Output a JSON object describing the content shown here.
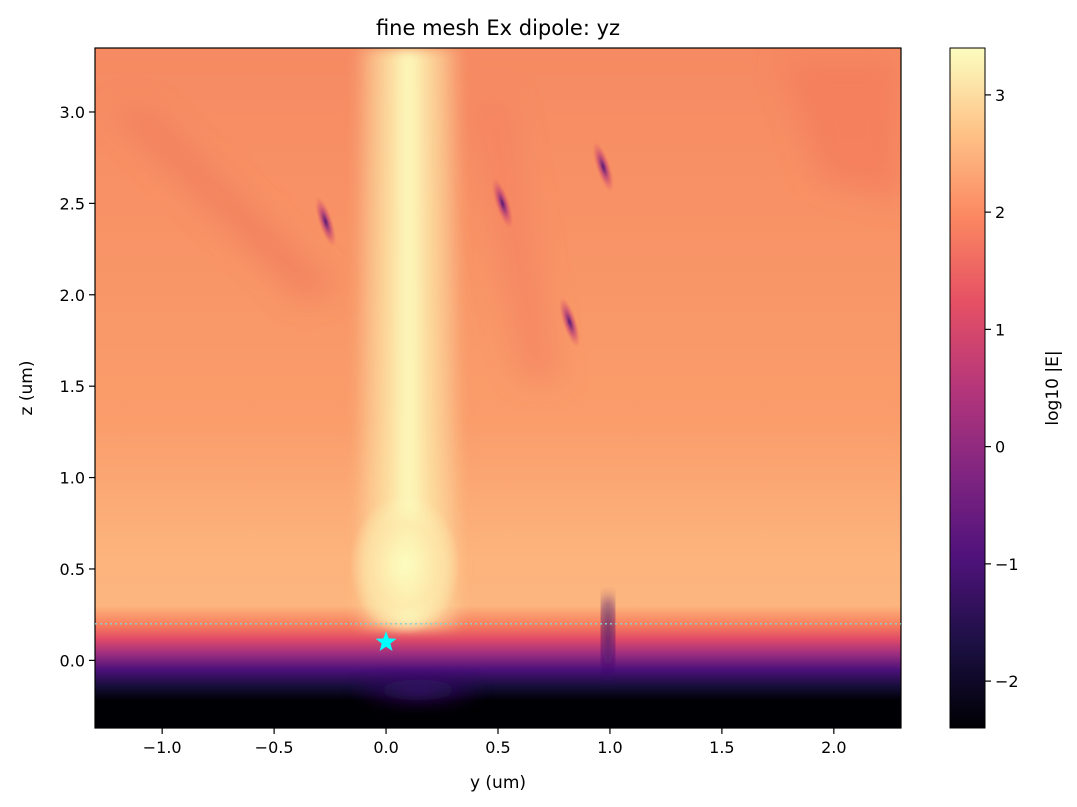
{
  "chart_data": {
    "type": "heatmap",
    "title": "fine mesh Ex dipole: yz",
    "xlabel": "y (um)",
    "ylabel": "z (um)",
    "xlim": [
      -1.3,
      2.3
    ],
    "ylim": [
      -0.37,
      3.35
    ],
    "x_ticks": [
      -1.0,
      -0.5,
      0.0,
      0.5,
      1.0,
      1.5,
      2.0
    ],
    "x_tick_labels": [
      "−1.0",
      "−0.5",
      "0.0",
      "0.5",
      "1.0",
      "1.5",
      "2.0"
    ],
    "y_ticks": [
      0.0,
      0.5,
      1.0,
      1.5,
      2.0,
      2.5,
      3.0
    ],
    "y_tick_labels": [
      "0.0",
      "0.5",
      "1.0",
      "1.5",
      "2.0",
      "2.5",
      "3.0"
    ],
    "colormap": "magma",
    "colorbar": {
      "label": "log10 |E|",
      "range": [
        -2.4,
        3.4
      ],
      "ticks": [
        -2,
        -1,
        0,
        1,
        2,
        3
      ],
      "tick_labels": [
        "−2",
        "−1",
        "0",
        "1",
        "2",
        "3"
      ]
    },
    "annotations": {
      "dipole_marker": {
        "y": 0.0,
        "z": 0.1,
        "marker": "star",
        "color": "#00ffff"
      },
      "interface_line": {
        "z": 0.2,
        "style": "dotted",
        "color": "#7fd3d8"
      }
    },
    "field_features": {
      "background_level": 2.0,
      "main_beam": {
        "y_center": 0.1,
        "level": 3.3
      },
      "substrate_boundary_z": 0.2,
      "minima": [
        {
          "y": -0.27,
          "z": 2.4
        },
        {
          "y": 0.52,
          "z": 2.5
        },
        {
          "y": 0.82,
          "z": 1.85
        },
        {
          "y": 0.97,
          "z": 2.7
        }
      ]
    }
  }
}
